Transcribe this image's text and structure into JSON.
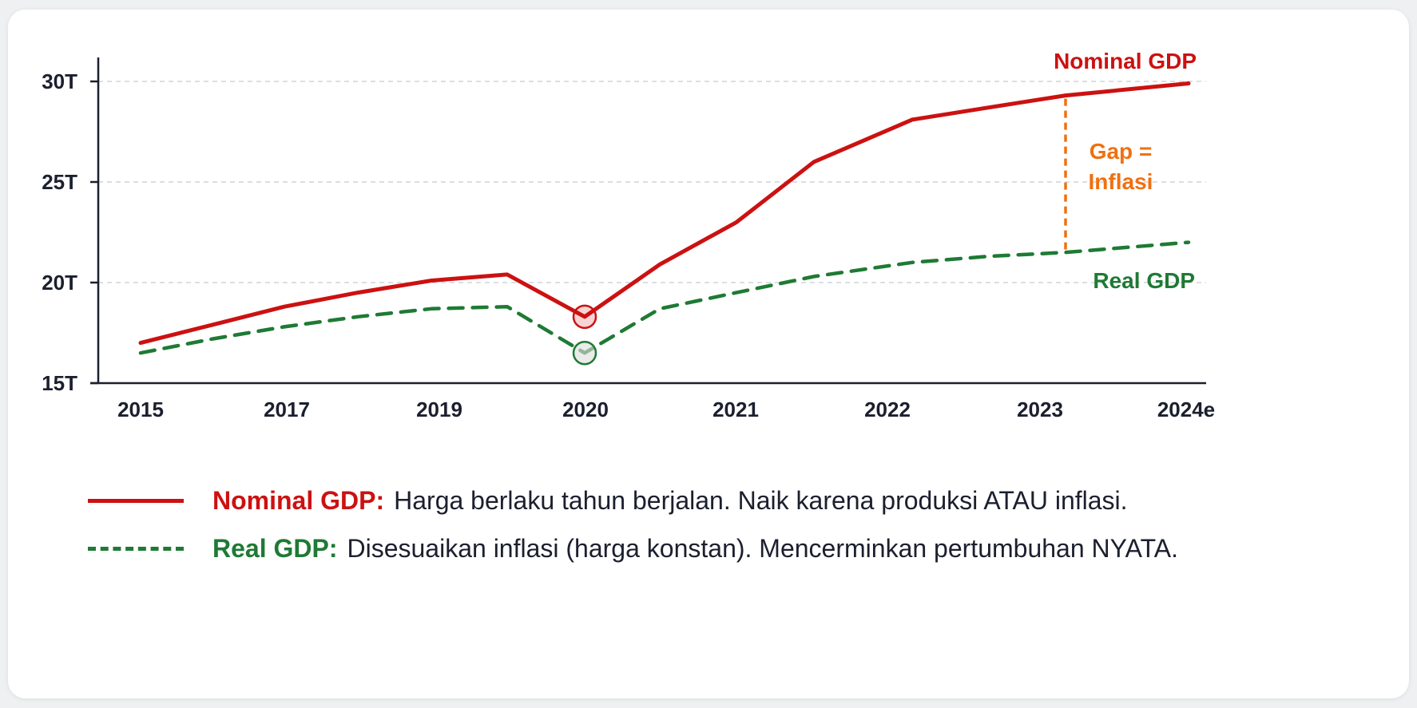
{
  "colors": {
    "nominal": "#cc1111",
    "real": "#1e7a34",
    "gap": "#f07010",
    "axis": "#1b1f2e",
    "grid": "#cfd3d8"
  },
  "chart_data": {
    "type": "line",
    "x": [
      "2015",
      "2016",
      "2017",
      "2018",
      "2019",
      "2019.5",
      "2020",
      "2020.5",
      "2021",
      "2021.5",
      "2022",
      "2022.5",
      "2023",
      "2024e"
    ],
    "x_ticks": [
      "2015",
      "2017",
      "2019",
      "2020",
      "2021",
      "2022",
      "2023",
      "2024e"
    ],
    "y_ticks": [
      "15T",
      "20T",
      "25T",
      "30T"
    ],
    "ylim": [
      15,
      30
    ],
    "grid": "horizontal dashed",
    "series": [
      {
        "name": "Nominal GDP",
        "style": "solid",
        "values": [
          17.0,
          17.9,
          18.8,
          19.5,
          20.1,
          20.4,
          18.3,
          20.9,
          23.0,
          26.0,
          28.1,
          28.7,
          29.3,
          29.9
        ]
      },
      {
        "name": "Real GDP",
        "style": "dashed",
        "values": [
          16.5,
          17.2,
          17.8,
          18.3,
          18.7,
          18.8,
          16.5,
          18.7,
          19.5,
          20.3,
          21.0,
          21.3,
          21.5,
          22.0
        ]
      }
    ],
    "highlight_points": [
      {
        "series": "Nominal GDP",
        "x": "2020",
        "y": 18.3
      },
      {
        "series": "Real GDP",
        "x": "2020",
        "y": 16.5
      }
    ],
    "annotation": {
      "lines": [
        "Gap =",
        "Inflasi"
      ],
      "x": "2023",
      "y_from": 21.5,
      "y_to": 29.3
    }
  },
  "labels": {
    "nominal_line_label": "Nominal GDP",
    "real_line_label": "Real GDP"
  },
  "legend": [
    {
      "name": "Nominal GDP:",
      "description": "Harga berlaku tahun berjalan. Naik karena produksi ATAU inflasi."
    },
    {
      "name": "Real GDP:",
      "description": "Disesuaikan inflasi (harga konstan). Mencerminkan pertumbuhan NYATA."
    }
  ]
}
